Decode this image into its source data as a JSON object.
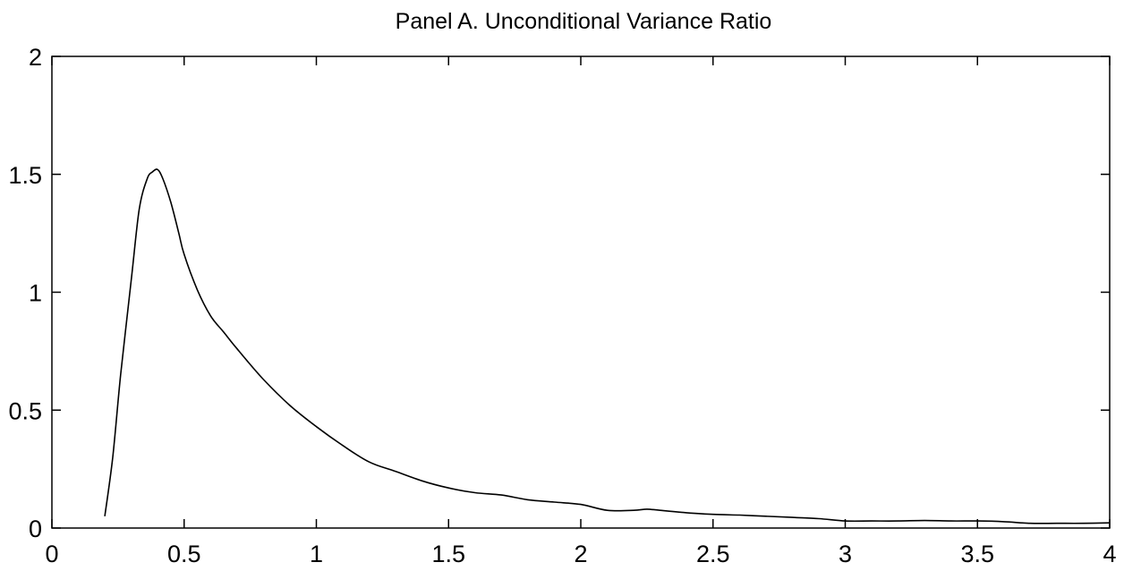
{
  "chart_data": {
    "type": "line",
    "title": "Panel A.  Unconditional Variance Ratio",
    "xlabel": "",
    "ylabel": "",
    "xlim": [
      0,
      4
    ],
    "ylim": [
      0,
      2
    ],
    "xticks": [
      "0",
      "0.5",
      "1",
      "1.5",
      "2",
      "2.5",
      "3",
      "3.5",
      "4"
    ],
    "yticks": [
      "0",
      "0.5",
      "1",
      "1.5",
      "2"
    ],
    "grid": false,
    "legend": "none",
    "line_color": "#000000",
    "series": [
      {
        "x": [
          0.2,
          0.23,
          0.26,
          0.3,
          0.33,
          0.36,
          0.38,
          0.4,
          0.42,
          0.45,
          0.48,
          0.5,
          0.55,
          0.6,
          0.65,
          0.7,
          0.8,
          0.9,
          1.0,
          1.1,
          1.2,
          1.3,
          1.4,
          1.5,
          1.6,
          1.7,
          1.8,
          1.9,
          2.0,
          2.1,
          2.2,
          2.25,
          2.3,
          2.4,
          2.5,
          2.6,
          2.7,
          2.8,
          2.9,
          3.0,
          3.1,
          3.2,
          3.3,
          3.4,
          3.5,
          3.6,
          3.7,
          3.8,
          3.9,
          4.0
        ],
        "y": [
          0.05,
          0.3,
          0.65,
          1.05,
          1.35,
          1.48,
          1.51,
          1.52,
          1.48,
          1.38,
          1.25,
          1.16,
          1.01,
          0.9,
          0.83,
          0.76,
          0.63,
          0.52,
          0.43,
          0.35,
          0.28,
          0.24,
          0.2,
          0.17,
          0.15,
          0.14,
          0.12,
          0.11,
          0.1,
          0.075,
          0.075,
          0.08,
          0.075,
          0.065,
          0.058,
          0.055,
          0.05,
          0.045,
          0.04,
          0.03,
          0.03,
          0.03,
          0.032,
          0.03,
          0.03,
          0.027,
          0.02,
          0.02,
          0.02,
          0.022
        ]
      }
    ]
  }
}
